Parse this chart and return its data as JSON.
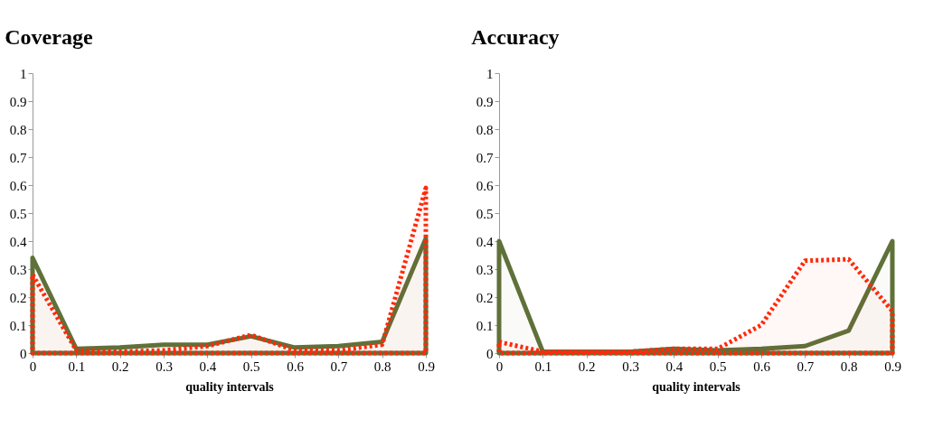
{
  "chart_data": [
    {
      "type": "area",
      "title": "Coverage",
      "xlabel": "quality intervals",
      "x": [
        0,
        0.1,
        0.2,
        0.3,
        0.4,
        0.5,
        0.6,
        0.7,
        0.8,
        0.9
      ],
      "series": [
        {
          "color": "#5f7139",
          "line_style": "solid",
          "values": [
            0.34,
            0.015,
            0.02,
            0.03,
            0.03,
            0.06,
            0.02,
            0.025,
            0.04,
            0.41
          ]
        },
        {
          "color": "#ff2a0a",
          "line_style": "dotted",
          "values": [
            0.28,
            0.01,
            0.005,
            0.01,
            0.025,
            0.065,
            0.01,
            0.01,
            0.03,
            0.59
          ]
        }
      ],
      "xlim": [
        0,
        0.9
      ],
      "xticks": [
        0,
        0.1,
        0.2,
        0.3,
        0.4,
        0.5,
        0.6,
        0.7,
        0.8,
        0.9
      ],
      "ylim": [
        0,
        1
      ],
      "yticks": [
        0,
        0.1,
        0.2,
        0.3,
        0.4,
        0.5,
        0.6,
        0.7,
        0.8,
        0.9,
        1
      ],
      "grid": false
    },
    {
      "type": "area",
      "title": "Accuracy",
      "xlabel": "quality intervals",
      "x": [
        0,
        0.1,
        0.2,
        0.3,
        0.4,
        0.5,
        0.6,
        0.7,
        0.8,
        0.9
      ],
      "series": [
        {
          "color": "#5f7139",
          "line_style": "solid",
          "values": [
            0.4,
            0.005,
            0.005,
            0.005,
            0.015,
            0.01,
            0.015,
            0.025,
            0.08,
            0.4
          ]
        },
        {
          "color": "#ff2a0a",
          "line_style": "dotted",
          "values": [
            0.04,
            0.005,
            0.005,
            0.005,
            0.015,
            0.015,
            0.1,
            0.33,
            0.335,
            0.15
          ]
        }
      ],
      "xlim": [
        0,
        0.9
      ],
      "xticks": [
        0,
        0.1,
        0.2,
        0.3,
        0.4,
        0.5,
        0.6,
        0.7,
        0.8,
        0.9
      ],
      "ylim": [
        0,
        1
      ],
      "yticks": [
        0,
        0.1,
        0.2,
        0.3,
        0.4,
        0.5,
        0.6,
        0.7,
        0.8,
        0.9,
        1
      ],
      "grid": false
    }
  ]
}
